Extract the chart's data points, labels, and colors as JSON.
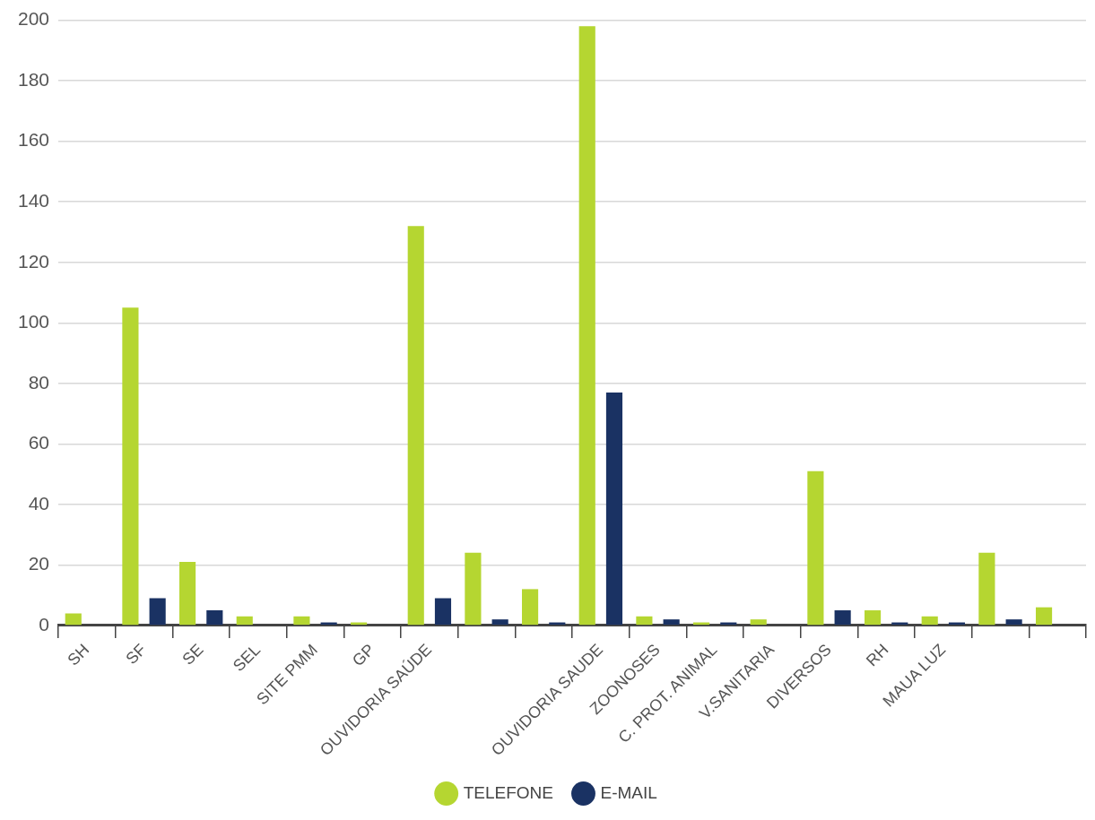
{
  "chart_data": {
    "type": "bar",
    "categories": [
      "SH",
      "SF",
      "SE",
      "SEL",
      "SITE PMM",
      "GP",
      "OUVIDORIA SAÚDE",
      null,
      null,
      "OUVIDORIA SAUDE",
      "ZOONOSES",
      "C. PROT. ANIMAL",
      "V.SANITARIA",
      "DIVERSOS",
      "RH",
      "MAUA LUZ",
      null,
      null
    ],
    "series": [
      {
        "name": "TELEFONE",
        "color": "#b5d631",
        "values": [
          4,
          105,
          21,
          3,
          3,
          1,
          132,
          24,
          12,
          198,
          3,
          1,
          2,
          51,
          5,
          3,
          24,
          6
        ]
      },
      {
        "name": "E-MAIL",
        "color": "#1a3263",
        "values": [
          0,
          9,
          5,
          0,
          1,
          0,
          9,
          2,
          1,
          77,
          2,
          1,
          0,
          5,
          1,
          1,
          2,
          0
        ]
      }
    ],
    "ylim": [
      0,
      200
    ],
    "yticks": [
      0,
      20,
      40,
      60,
      80,
      100,
      120,
      140,
      160,
      180,
      200
    ],
    "grid": "y",
    "legend": "bottom"
  }
}
